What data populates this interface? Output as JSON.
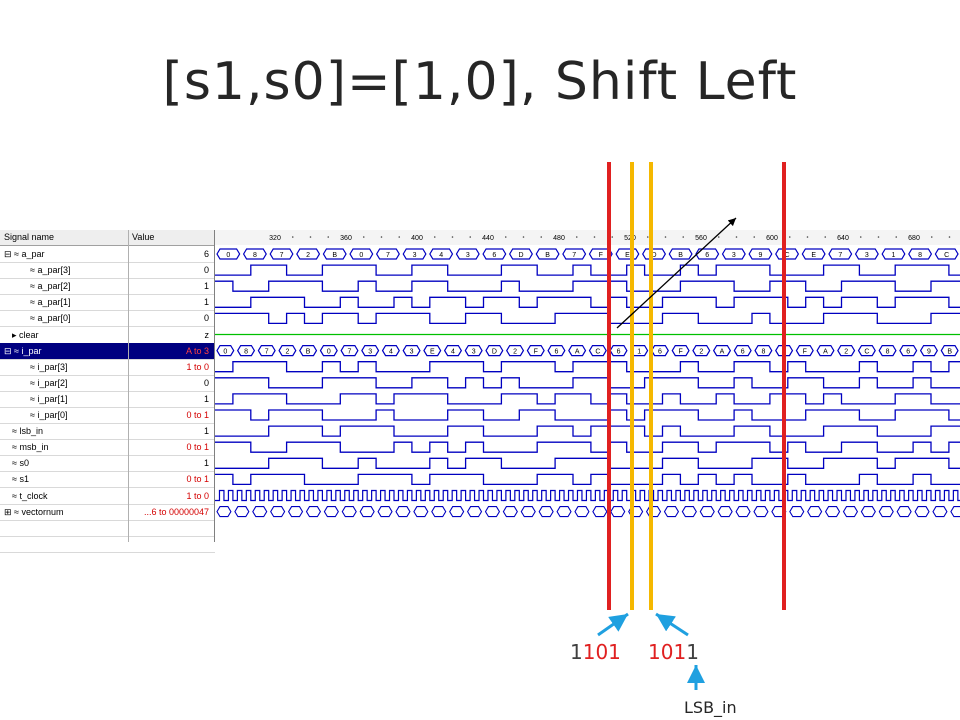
{
  "title": "[s1,s0]=[1,0], Shift Left",
  "header": {
    "signal_col": "Signal name",
    "value_col": "Value"
  },
  "time_ticks": [
    "320",
    "360",
    "400",
    "440",
    "480",
    "520",
    "560",
    "600",
    "640",
    "680"
  ],
  "signals": [
    {
      "name": "a_par",
      "value": "6",
      "expand": "⊟",
      "kind": "bus",
      "value_red": false
    },
    {
      "name": "a_par[3]",
      "value": "0",
      "kind": "bit",
      "value_red": false
    },
    {
      "name": "a_par[2]",
      "value": "1",
      "kind": "bit",
      "value_red": false
    },
    {
      "name": "a_par[1]",
      "value": "1",
      "kind": "bit",
      "value_red": false
    },
    {
      "name": "a_par[0]",
      "value": "0",
      "kind": "bit",
      "value_red": false
    },
    {
      "name": "clear",
      "value": "z",
      "kind": "z",
      "value_red": false
    },
    {
      "name": "i_par",
      "value": "A to 3",
      "expand": "⊟",
      "kind": "bus",
      "value_red": true,
      "selected": true
    },
    {
      "name": "i_par[3]",
      "value": "1 to 0",
      "kind": "bit",
      "value_red": true
    },
    {
      "name": "i_par[2]",
      "value": "0",
      "kind": "bit",
      "value_red": false
    },
    {
      "name": "i_par[1]",
      "value": "1",
      "kind": "bit",
      "value_red": false
    },
    {
      "name": "i_par[0]",
      "value": "0 to 1",
      "kind": "bit",
      "value_red": true
    },
    {
      "name": "lsb_in",
      "value": "1",
      "kind": "bit",
      "value_red": false
    },
    {
      "name": "msb_in",
      "value": "0 to 1",
      "kind": "bit",
      "value_red": true
    },
    {
      "name": "s0",
      "value": "1",
      "kind": "bit",
      "value_red": false
    },
    {
      "name": "s1",
      "value": "0 to 1",
      "kind": "bit",
      "value_red": true
    },
    {
      "name": "t_clock",
      "value": "1 to 0",
      "kind": "clock",
      "value_red": true
    },
    {
      "name": "vectornum",
      "value": "...6 to 00000047",
      "expand": "⊞",
      "kind": "bus",
      "value_red": true
    }
  ],
  "bus_labels": {
    "a_par": [
      "0",
      "8",
      "7",
      "2",
      "B",
      "0",
      "7",
      "3",
      "4",
      "3",
      "6",
      "D",
      "B",
      "7",
      "F",
      "E",
      "D",
      "B",
      "6",
      "3",
      "9",
      "C",
      "E",
      "7",
      "3",
      "1",
      "8",
      "C"
    ],
    "i_par": [
      "0",
      "8",
      "7",
      "2",
      "B",
      "0",
      "7",
      "3",
      "4",
      "3",
      "E",
      "4",
      "3",
      "D",
      "2",
      "F",
      "6",
      "A",
      "C",
      "6",
      "1",
      "6",
      "F",
      "2",
      "A",
      "6",
      "8",
      "0",
      "F",
      "A",
      "2",
      "C",
      "8",
      "6",
      "9",
      "B"
    ]
  },
  "annotations": {
    "bits_left": {
      "black": "1",
      "red": "101"
    },
    "bits_right": {
      "red": "101",
      "black": "1"
    },
    "lsb_label": "LSB_in"
  },
  "colors": {
    "red_marker": "#e02020",
    "yellow_marker": "#f5b800",
    "blue_arrow": "#1fa0e0",
    "wave": "#0000c0",
    "clear": "#00c000"
  }
}
